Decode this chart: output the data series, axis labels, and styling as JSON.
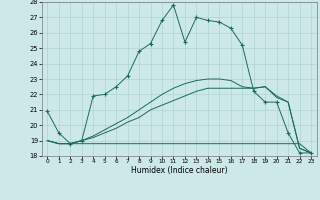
{
  "xlabel": "Humidex (Indice chaleur)",
  "xlim": [
    -0.5,
    23.5
  ],
  "ylim": [
    18,
    28
  ],
  "yticks": [
    18,
    19,
    20,
    21,
    22,
    23,
    24,
    25,
    26,
    27,
    28
  ],
  "xticks": [
    0,
    1,
    2,
    3,
    4,
    5,
    6,
    7,
    8,
    9,
    10,
    11,
    12,
    13,
    14,
    15,
    16,
    17,
    18,
    19,
    20,
    21,
    22,
    23
  ],
  "background_color": "#cde8e8",
  "grid_color": "#aacccc",
  "line_color": "#1a6b5a",
  "line1_x": [
    0,
    1,
    2,
    3,
    4,
    5,
    6,
    7,
    8,
    9,
    10,
    11,
    12,
    13,
    14,
    15,
    16,
    17,
    18,
    19,
    20,
    21,
    22,
    23
  ],
  "line1_y": [
    20.9,
    19.5,
    18.8,
    19.0,
    21.9,
    22.0,
    22.5,
    23.2,
    24.8,
    25.3,
    26.8,
    27.8,
    25.4,
    27.0,
    26.8,
    26.7,
    26.3,
    25.2,
    22.2,
    21.5,
    21.5,
    19.5,
    18.2,
    18.2
  ],
  "line2_x": [
    0,
    1,
    2,
    3,
    4,
    5,
    6,
    7,
    8,
    9,
    10,
    11,
    12,
    13,
    14,
    15,
    16,
    17,
    18,
    19,
    20,
    21,
    22,
    23
  ],
  "line2_y": [
    19.0,
    18.8,
    18.8,
    18.8,
    18.8,
    18.8,
    18.8,
    18.8,
    18.8,
    18.8,
    18.8,
    18.8,
    18.8,
    18.8,
    18.8,
    18.8,
    18.8,
    18.8,
    18.8,
    18.8,
    18.8,
    18.8,
    18.8,
    18.2
  ],
  "line3_x": [
    0,
    1,
    2,
    3,
    4,
    5,
    6,
    7,
    8,
    9,
    10,
    11,
    12,
    13,
    14,
    15,
    16,
    17,
    18,
    19,
    20,
    21,
    22,
    23
  ],
  "line3_y": [
    19.0,
    18.8,
    18.8,
    19.0,
    19.2,
    19.5,
    19.8,
    20.2,
    20.5,
    21.0,
    21.3,
    21.6,
    21.9,
    22.2,
    22.4,
    22.4,
    22.4,
    22.4,
    22.4,
    22.5,
    21.8,
    21.5,
    18.5,
    18.2
  ],
  "line4_x": [
    0,
    1,
    2,
    3,
    4,
    5,
    6,
    7,
    8,
    9,
    10,
    11,
    12,
    13,
    14,
    15,
    16,
    17,
    18,
    19,
    20,
    21,
    22,
    23
  ],
  "line4_y": [
    19.0,
    18.8,
    18.8,
    19.0,
    19.3,
    19.7,
    20.1,
    20.5,
    21.0,
    21.5,
    22.0,
    22.4,
    22.7,
    22.9,
    23.0,
    23.0,
    22.9,
    22.5,
    22.4,
    22.5,
    21.9,
    21.5,
    18.5,
    18.2
  ]
}
